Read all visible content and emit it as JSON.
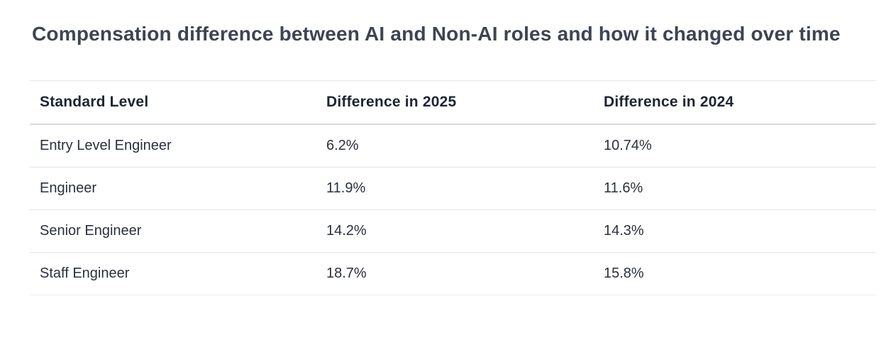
{
  "page": {
    "title": "Compensation difference between AI and Non-AI roles and how it changed over time"
  },
  "table": {
    "columns": [
      "Standard Level",
      "Difference in 2025",
      "Difference in 2024"
    ],
    "rows": [
      [
        "Entry Level Engineer",
        "6.2%",
        "10.74%"
      ],
      [
        "Engineer",
        "11.9%",
        "11.6%"
      ],
      [
        "Senior Engineer",
        "14.2%",
        "14.3%"
      ],
      [
        "Staff Engineer",
        "18.7%",
        "15.8%"
      ]
    ]
  },
  "colors": {
    "background": "#ffffff",
    "heading_text": "#3d4453",
    "header_text": "#1e2533",
    "body_text": "#2a303e",
    "border": "#e3e5e9",
    "header_border": "#d8dbe0"
  },
  "chart_data": {
    "type": "table",
    "title": "Compensation difference between AI and Non-AI roles and how it changed over time",
    "columns": [
      "Standard Level",
      "Difference in 2025",
      "Difference in 2024"
    ],
    "categories": [
      "Entry Level Engineer",
      "Engineer",
      "Senior Engineer",
      "Staff Engineer"
    ],
    "series": [
      {
        "name": "Difference in 2025",
        "values": [
          6.2,
          11.9,
          14.2,
          18.7
        ],
        "unit": "%"
      },
      {
        "name": "Difference in 2024",
        "values": [
          10.74,
          11.6,
          14.3,
          15.8
        ],
        "unit": "%"
      }
    ]
  }
}
